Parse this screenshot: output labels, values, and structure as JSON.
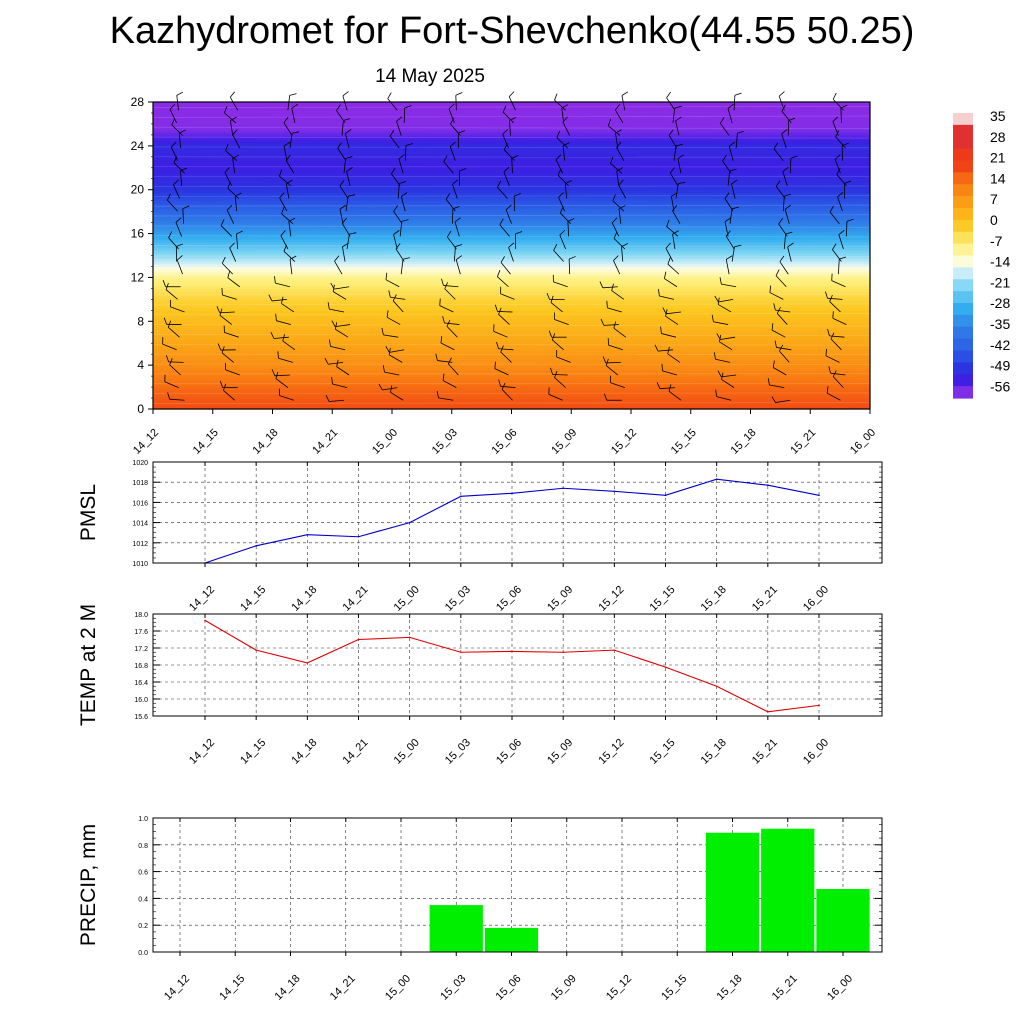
{
  "title": "Kazhydromet for Fort-Shevchenko(44.55 50.25)",
  "subtitle": "14 May 2025",
  "time_labels": [
    "14_12",
    "14_15",
    "14_18",
    "14_21",
    "15_00",
    "15_03",
    "15_06",
    "15_09",
    "15_12",
    "15_15",
    "15_18",
    "15_21",
    "16_00"
  ],
  "chart_data": [
    {
      "type": "heatmap",
      "name": "upper-air temperature cross-section with wind barbs",
      "x": [
        "14_12",
        "14_15",
        "14_18",
        "14_21",
        "15_00",
        "15_03",
        "15_06",
        "15_09",
        "15_12",
        "15_15",
        "15_18",
        "15_21",
        "16_00"
      ],
      "y_ticks": [
        0,
        4,
        8,
        12,
        16,
        20,
        24,
        28
      ],
      "ylim": [
        0,
        28
      ],
      "colorbar": {
        "labels": [
          "35",
          "28",
          "21",
          "14",
          "7",
          "0",
          "-7",
          "-14",
          "-21",
          "-28",
          "-35",
          "-42",
          "-49",
          "-56"
        ],
        "colors": [
          "#f7c6c6",
          "#e23a2e",
          "#f0441c",
          "#f86a10",
          "#fb9a12",
          "#fcc21a",
          "#fdf090",
          "#e6f6f9",
          "#8ee0f4",
          "#33b3ef",
          "#2f72e6",
          "#2b3fe0",
          "#3a1ee6",
          "#8b33ee"
        ]
      },
      "levels_temperature": [
        {
          "y": 0,
          "t": 18
        },
        {
          "y": 2,
          "t": 15
        },
        {
          "y": 4,
          "t": 10
        },
        {
          "y": 6,
          "t": 6
        },
        {
          "y": 8,
          "t": 2
        },
        {
          "y": 10,
          "t": -2
        },
        {
          "y": 12,
          "t": -8
        },
        {
          "y": 13,
          "t": -14
        },
        {
          "y": 14,
          "t": -20
        },
        {
          "y": 16,
          "t": -30
        },
        {
          "y": 18,
          "t": -40
        },
        {
          "y": 20,
          "t": -48
        },
        {
          "y": 22,
          "t": -52
        },
        {
          "y": 24,
          "t": -50
        },
        {
          "y": 26,
          "t": -58
        },
        {
          "y": 28,
          "t": -60
        }
      ],
      "grid": false
    },
    {
      "type": "line",
      "ylabel": "PMSL",
      "x": [
        "14_12",
        "14_15",
        "14_18",
        "14_21",
        "15_00",
        "15_03",
        "15_06",
        "15_09",
        "15_12",
        "15_15",
        "15_18",
        "15_21",
        "16_00"
      ],
      "values": [
        1010.0,
        1011.7,
        1012.8,
        1012.6,
        1014.0,
        1016.6,
        1016.9,
        1017.4,
        1017.1,
        1016.7,
        1018.3,
        1017.7,
        1016.7
      ],
      "ylim": [
        1010,
        1020
      ],
      "y_ticks": [
        1010,
        1012,
        1014,
        1016,
        1018,
        1020
      ],
      "color": "#0000cc",
      "grid": true
    },
    {
      "type": "line",
      "ylabel": "TEMP at 2 M",
      "x": [
        "14_12",
        "14_15",
        "14_18",
        "14_21",
        "15_00",
        "15_03",
        "15_06",
        "15_09",
        "15_12",
        "15_15",
        "15_18",
        "15_21",
        "16_00"
      ],
      "values": [
        17.85,
        17.15,
        16.85,
        17.4,
        17.45,
        17.1,
        17.12,
        17.1,
        17.15,
        16.75,
        16.3,
        15.7,
        15.85
      ],
      "ylim": [
        15.6,
        18.0
      ],
      "y_ticks": [
        15.6,
        16.0,
        16.4,
        16.8,
        17.2,
        17.6,
        18.0
      ],
      "color": "#dd0000",
      "grid": true
    },
    {
      "type": "bar",
      "ylabel": "PRECIP, mm",
      "x": [
        "14_12",
        "14_15",
        "14_18",
        "14_21",
        "15_00",
        "15_03",
        "15_06",
        "15_09",
        "15_12",
        "15_15",
        "15_18",
        "15_21",
        "16_00"
      ],
      "values": [
        0,
        0,
        0,
        0,
        0,
        0.35,
        0.18,
        0,
        0,
        0,
        0.89,
        0.92,
        0.47
      ],
      "ylim": [
        0,
        1.0
      ],
      "y_ticks": [
        0.0,
        0.2,
        0.4,
        0.6,
        0.8,
        1.0
      ],
      "color": "#00ee00",
      "grid": true
    }
  ]
}
